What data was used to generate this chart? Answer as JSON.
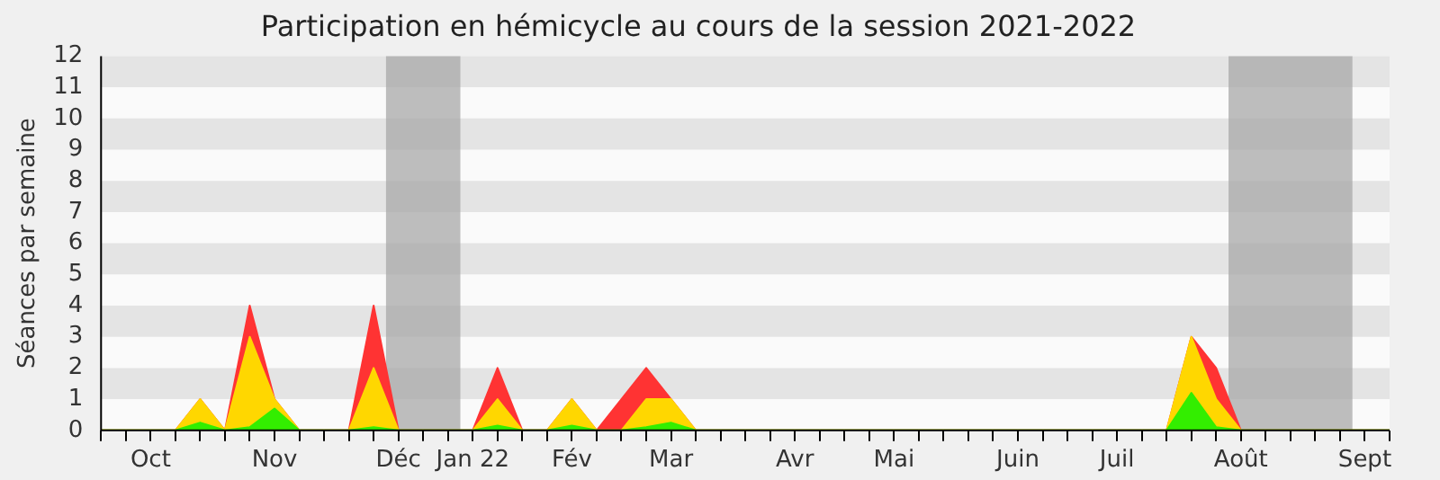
{
  "chart_data": {
    "type": "area",
    "stacked": true,
    "title": "Participation en hémicycle au cours de la session 2021-2022",
    "ylabel": "Séances par semaine",
    "categories": [
      null,
      null,
      "Oct",
      null,
      null,
      null,
      null,
      "Nov",
      null,
      null,
      null,
      null,
      "Déc",
      null,
      null,
      "Jan 22",
      null,
      null,
      null,
      "Fév",
      null,
      null,
      null,
      "Mar",
      null,
      null,
      null,
      null,
      "Avr",
      null,
      null,
      null,
      "Mai",
      null,
      null,
      null,
      null,
      "Juin",
      null,
      null,
      null,
      "Juil",
      null,
      null,
      null,
      null,
      "Août",
      null,
      null,
      null,
      null,
      "Sept",
      null
    ],
    "ylim": [
      0,
      12
    ],
    "yticks": [
      0,
      1,
      2,
      3,
      4,
      5,
      6,
      7,
      8,
      9,
      10,
      11,
      12
    ],
    "marker": "none",
    "series": [
      {
        "color": "#33ee00",
        "values": [
          0,
          0,
          0,
          0,
          0.25,
          0,
          0.1,
          0.7,
          0,
          0,
          0,
          0.1,
          0,
          0,
          0,
          0,
          0.15,
          0,
          0,
          0.15,
          0,
          0,
          0.1,
          0.25,
          0,
          0,
          0,
          0,
          0,
          0,
          0,
          0,
          0,
          0,
          0,
          0,
          0,
          0,
          0,
          0,
          0,
          0,
          0,
          0,
          1.2,
          0.1,
          0,
          0,
          0,
          0,
          0,
          0,
          0
        ]
      },
      {
        "color": "#ffd700",
        "values": [
          0,
          0,
          0,
          0,
          0.75,
          0,
          2.9,
          0.3,
          0,
          0,
          0,
          1.9,
          0,
          0,
          0,
          0,
          0.85,
          0,
          0,
          0.85,
          0,
          0,
          0.9,
          0.75,
          0,
          0,
          0,
          0,
          0,
          0,
          0,
          0,
          0,
          0,
          0,
          0,
          0,
          0,
          0,
          0,
          0,
          0,
          0,
          0,
          1.8,
          0.9,
          0,
          0,
          0,
          0,
          0,
          0,
          0
        ]
      },
      {
        "color": "#ff3333",
        "values": [
          0,
          0,
          0,
          0,
          0,
          0,
          1,
          0,
          0,
          0,
          0,
          2,
          0,
          0,
          0,
          0,
          1,
          0,
          0,
          0,
          0,
          1,
          1,
          0,
          0,
          0,
          0,
          0,
          0,
          0,
          0,
          0,
          0,
          0,
          0,
          0,
          0,
          0,
          0,
          0,
          0,
          0,
          0,
          0,
          0,
          1,
          0,
          0,
          0,
          0,
          0,
          0,
          0
        ]
      }
    ]
  }
}
